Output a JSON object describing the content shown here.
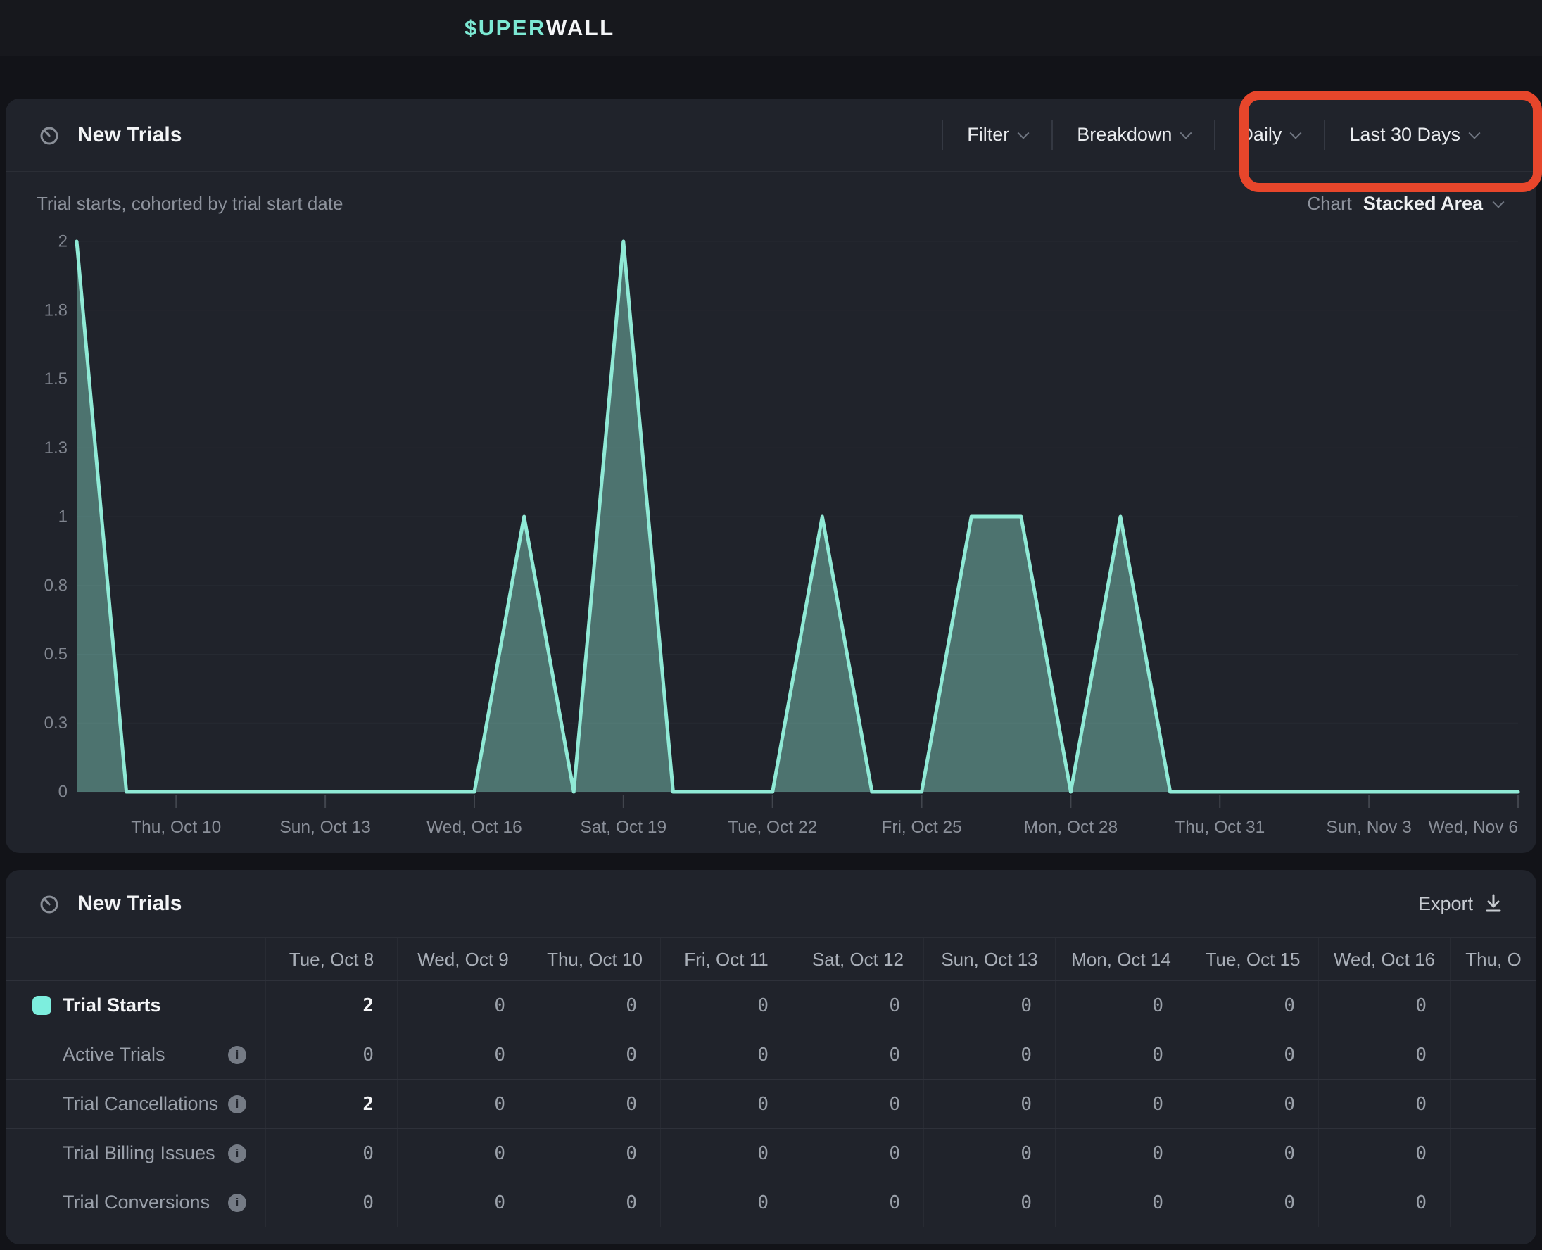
{
  "topbar": {
    "logo_prefix": "$UPER",
    "logo_suffix": "WALL"
  },
  "chart_panel": {
    "title": "New Trials",
    "subtitle": "Trial starts, cohorted by trial start date",
    "toolbar": [
      {
        "label": "Filter"
      },
      {
        "label": "Breakdown"
      },
      {
        "label": "Daily"
      },
      {
        "label": "Last 30 Days"
      }
    ],
    "chart_label": "Chart",
    "chart_type": "Stacked Area",
    "annotation_color": "#e7462b"
  },
  "chart_data": {
    "type": "area",
    "title": "New Trials",
    "series": [
      {
        "name": "Trial Starts",
        "values": [
          2,
          0,
          0,
          0,
          0,
          0,
          0,
          0,
          0,
          1,
          0,
          2,
          0,
          0,
          0,
          1,
          0,
          0,
          1,
          1,
          0,
          1,
          0,
          0,
          0,
          0,
          0,
          0,
          0,
          0
        ]
      }
    ],
    "x_tick_labels": [
      "Thu, Oct 10",
      "Sun, Oct 13",
      "Wed, Oct 16",
      "Sat, Oct 19",
      "Tue, Oct 22",
      "Fri, Oct 25",
      "Mon, Oct 28",
      "Thu, Oct 31",
      "Sun, Nov 3",
      "Wed, Nov 6"
    ],
    "x_tick_indices": [
      2,
      5,
      8,
      11,
      14,
      17,
      20,
      23,
      26,
      29
    ],
    "y_ticks": [
      "2",
      "1.8",
      "1.5",
      "1.3",
      "1",
      "0.8",
      "0.5",
      "0.3",
      "0"
    ],
    "y_tick_values": [
      2,
      1.75,
      1.5,
      1.25,
      1,
      0.75,
      0.5,
      0.25,
      0
    ],
    "ylim": [
      0,
      2
    ],
    "grid": true,
    "legend_position": "none",
    "stroke_color": "#90ead6",
    "fill_color": "rgba(144,234,214,0.40)",
    "grid_color": "#262a32",
    "tick_color": "#41454d",
    "axis_text_color": "#82879​1"
  },
  "table_panel": {
    "title": "New Trials",
    "export_label": "Export",
    "columns": [
      "Tue, Oct 8",
      "Wed, Oct 9",
      "Thu, Oct 10",
      "Fri, Oct 11",
      "Sat, Oct 12",
      "Sun, Oct 13",
      "Mon, Oct 14",
      "Tue, Oct 15",
      "Wed, Oct 16",
      "Thu, O"
    ],
    "rows": [
      {
        "label": "Trial Starts",
        "swatch": true,
        "info": false,
        "values": [
          "2",
          "0",
          "0",
          "0",
          "0",
          "0",
          "0",
          "0",
          "0",
          ""
        ]
      },
      {
        "label": "Active Trials",
        "swatch": false,
        "info": true,
        "values": [
          "0",
          "0",
          "0",
          "0",
          "0",
          "0",
          "0",
          "0",
          "0",
          ""
        ]
      },
      {
        "label": "Trial Cancellations",
        "swatch": false,
        "info": true,
        "values": [
          "2",
          "0",
          "0",
          "0",
          "0",
          "0",
          "0",
          "0",
          "0",
          ""
        ]
      },
      {
        "label": "Trial Billing Issues",
        "swatch": false,
        "info": true,
        "values": [
          "0",
          "0",
          "0",
          "0",
          "0",
          "0",
          "0",
          "0",
          "0",
          ""
        ]
      },
      {
        "label": "Trial Conversions",
        "swatch": false,
        "info": true,
        "values": [
          "0",
          "0",
          "0",
          "0",
          "0",
          "0",
          "0",
          "0",
          "0",
          ""
        ]
      }
    ]
  }
}
